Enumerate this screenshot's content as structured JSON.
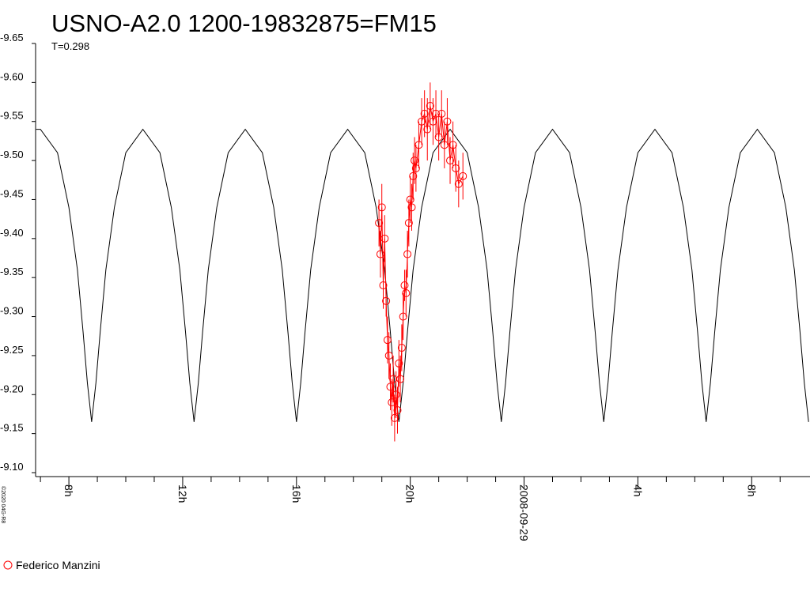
{
  "chart_data": {
    "type": "scatter",
    "title": "USNO-A2.0 1200-19832875=FM15",
    "subtitle": "T=0.298",
    "credit": "©2020 04G-R8",
    "xlim": [
      6.83,
      34.05
    ],
    "ylim": [
      -9.1,
      -9.65
    ],
    "yticks": [
      -9.65,
      {
        "value": -9.6,
        "label": "-9.60"
      },
      -9.55,
      {
        "value": -9.5,
        "label": "-9.50"
      },
      -9.45,
      {
        "value": -9.4,
        "label": "-9.40"
      },
      -9.35,
      {
        "value": -9.3,
        "label": "-9.30"
      },
      -9.25,
      {
        "value": -9.2,
        "label": "-9.20"
      },
      -9.15,
      {
        "value": -9.1,
        "label": "-9.10"
      }
    ],
    "xticks": [
      {
        "value": 8,
        "label": "8h"
      },
      {
        "value": 12,
        "label": "12h"
      },
      {
        "value": 16,
        "label": "16h"
      },
      {
        "value": 20,
        "label": "20h"
      },
      {
        "value": 24,
        "label": "2008-09-29"
      },
      {
        "value": 28,
        "label": "4h"
      },
      {
        "value": 32,
        "label": "8h"
      }
    ],
    "xminorticks": [
      7,
      9,
      10,
      11,
      13,
      14,
      15,
      17,
      18,
      19,
      21,
      22,
      23,
      25,
      26,
      27,
      29,
      30,
      31,
      33
    ],
    "series": [
      {
        "color": "#000000",
        "style": "line",
        "x": [
          6.85,
          7.0,
          7.6,
          8.0,
          8.3,
          8.5,
          8.65,
          8.8,
          8.95,
          9.1,
          9.3,
          9.6,
          10.0,
          10.6,
          11.2,
          11.6,
          11.9,
          12.1,
          12.25,
          12.4,
          12.55,
          12.7,
          12.9,
          13.2,
          13.6,
          14.2,
          14.8,
          15.2,
          15.5,
          15.7,
          15.85,
          16.0,
          16.15,
          16.3,
          16.5,
          16.8,
          17.2,
          17.8,
          18.4,
          18.8,
          19.1,
          19.3,
          19.45,
          19.6,
          19.75,
          19.9,
          20.1,
          20.4,
          20.8,
          21.4,
          22.0,
          22.4,
          22.7,
          22.9,
          23.05,
          23.2,
          23.35,
          23.5,
          23.7,
          24.0,
          24.4,
          25.0,
          25.6,
          26.0,
          26.3,
          26.5,
          26.65,
          26.8,
          26.95,
          27.1,
          27.3,
          27.6,
          28.0,
          28.6,
          29.2,
          29.6,
          29.9,
          30.1,
          30.25,
          30.4,
          30.55,
          30.7,
          30.9,
          31.2,
          31.6,
          32.2,
          32.8,
          33.2,
          33.5,
          33.7,
          33.85,
          34.0
        ],
        "values": [
          -9.54,
          -9.54,
          -9.51,
          -9.44,
          -9.36,
          -9.28,
          -9.215,
          -9.165,
          -9.215,
          -9.28,
          -9.36,
          -9.44,
          -9.51,
          -9.54,
          -9.51,
          -9.44,
          -9.36,
          -9.28,
          -9.215,
          -9.165,
          -9.215,
          -9.28,
          -9.36,
          -9.44,
          -9.51,
          -9.54,
          -9.51,
          -9.44,
          -9.36,
          -9.28,
          -9.215,
          -9.165,
          -9.215,
          -9.28,
          -9.36,
          -9.44,
          -9.51,
          -9.54,
          -9.51,
          -9.44,
          -9.36,
          -9.28,
          -9.215,
          -9.165,
          -9.215,
          -9.28,
          -9.36,
          -9.44,
          -9.51,
          -9.54,
          -9.51,
          -9.44,
          -9.36,
          -9.28,
          -9.215,
          -9.165,
          -9.215,
          -9.28,
          -9.36,
          -9.44,
          -9.51,
          -9.54,
          -9.51,
          -9.44,
          -9.36,
          -9.28,
          -9.215,
          -9.165,
          -9.215,
          -9.28,
          -9.36,
          -9.44,
          -9.51,
          -9.54,
          -9.51,
          -9.44,
          -9.36,
          -9.28,
          -9.215,
          -9.165,
          -9.215,
          -9.28,
          -9.36,
          -9.44,
          -9.51,
          -9.54,
          -9.51,
          -9.44,
          -9.36,
          -9.28,
          -9.215,
          -9.165
        ]
      },
      {
        "name": "Federico Manzini",
        "color": "#ff0000",
        "style": "points",
        "x": [
          18.9,
          18.95,
          19.0,
          19.05,
          19.1,
          19.15,
          19.2,
          19.25,
          19.3,
          19.35,
          19.4,
          19.45,
          19.5,
          19.55,
          19.6,
          19.65,
          19.7,
          19.75,
          19.8,
          19.85,
          19.9,
          19.95,
          20.0,
          20.05,
          20.1,
          20.15,
          20.2,
          20.3,
          20.4,
          20.5,
          20.6,
          20.7,
          20.8,
          20.9,
          21.0,
          21.1,
          21.2,
          21.3,
          21.4,
          21.5,
          21.6,
          21.7,
          21.85
        ],
        "values": [
          -9.42,
          -9.38,
          -9.44,
          -9.34,
          -9.4,
          -9.32,
          -9.27,
          -9.25,
          -9.21,
          -9.19,
          -9.22,
          -9.17,
          -9.2,
          -9.18,
          -9.24,
          -9.22,
          -9.26,
          -9.3,
          -9.34,
          -9.33,
          -9.38,
          -9.42,
          -9.45,
          -9.44,
          -9.48,
          -9.5,
          -9.49,
          -9.52,
          -9.55,
          -9.56,
          -9.54,
          -9.57,
          -9.55,
          -9.56,
          -9.53,
          -9.56,
          -9.52,
          -9.55,
          -9.5,
          -9.52,
          -9.49,
          -9.47,
          -9.48
        ],
        "errors": [
          0.03,
          0.03,
          0.03,
          0.03,
          0.03,
          0.02,
          0.03,
          0.03,
          0.03,
          0.03,
          0.03,
          0.03,
          0.03,
          0.03,
          0.03,
          0.03,
          0.03,
          0.03,
          0.02,
          0.03,
          0.03,
          0.03,
          0.03,
          0.03,
          0.03,
          0.03,
          0.03,
          0.03,
          0.03,
          0.03,
          0.04,
          0.03,
          0.03,
          0.03,
          0.03,
          0.03,
          0.03,
          0.03,
          0.03,
          0.03,
          0.03,
          0.03,
          0.03
        ]
      }
    ]
  }
}
